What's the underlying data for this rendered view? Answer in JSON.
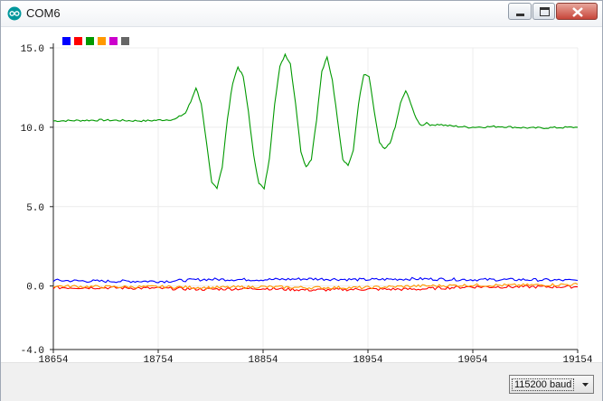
{
  "window": {
    "title": "COM6"
  },
  "baud": {
    "selected": "115200 baud"
  },
  "chart_data": {
    "type": "line",
    "x_ticks": [
      18654,
      18754,
      18854,
      18954,
      19054,
      19154
    ],
    "y_ticks": [
      15.0,
      10.0,
      5.0,
      0.0,
      -4.0
    ],
    "x_tick_labels": [
      "18654",
      "18754",
      "18854",
      "18954",
      "19054",
      "19154"
    ],
    "y_tick_labels": [
      "15.0",
      "10.0",
      "5.0",
      "0.0",
      "-4.0"
    ],
    "xlim": [
      18654,
      19154
    ],
    "ylim": [
      -4.0,
      15.0
    ],
    "grid": true,
    "legend_colors": [
      "#0000ff",
      "#ff0000",
      "#009900",
      "#ff9900",
      "#cc00cc",
      "#666666"
    ],
    "series": [
      {
        "color": "#009900",
        "x": [
          18654,
          18700,
          18740,
          18770,
          18780,
          18785,
          18790,
          18795,
          18800,
          18805,
          18810,
          18815,
          18820,
          18825,
          18830,
          18835,
          18840,
          18845,
          18850,
          18855,
          18860,
          18865,
          18870,
          18875,
          18880,
          18885,
          18890,
          18895,
          18900,
          18905,
          18910,
          18915,
          18920,
          18925,
          18930,
          18935,
          18940,
          18945,
          18950,
          18955,
          18960,
          18965,
          18970,
          18975,
          18980,
          18985,
          18990,
          18995,
          19000,
          19005,
          19010,
          19015,
          19020,
          19030,
          19050,
          19080,
          19110,
          19154
        ],
        "y": [
          10.4,
          10.45,
          10.4,
          10.5,
          10.9,
          11.6,
          12.5,
          11.5,
          9.0,
          6.5,
          6.2,
          7.5,
          10.5,
          12.8,
          13.8,
          13.2,
          11.0,
          8.2,
          6.5,
          6.1,
          8.0,
          11.5,
          13.8,
          14.6,
          14.0,
          11.5,
          8.5,
          7.5,
          8.0,
          10.5,
          13.5,
          14.4,
          13.0,
          10.5,
          8.0,
          7.6,
          8.5,
          11.5,
          13.3,
          13.2,
          11.0,
          9.0,
          8.6,
          9.0,
          10.0,
          11.5,
          12.3,
          11.5,
          10.5,
          10.1,
          10.3,
          10.1,
          10.2,
          10.1,
          10.0,
          10.05,
          9.95,
          10.0
        ]
      },
      {
        "color": "#0000ff",
        "x": [
          18654,
          18700,
          18760,
          18800,
          18850,
          18900,
          18950,
          19000,
          19050,
          19100,
          19154
        ],
        "y": [
          0.35,
          0.3,
          0.3,
          0.42,
          0.4,
          0.45,
          0.4,
          0.45,
          0.4,
          0.4,
          0.35
        ]
      },
      {
        "color": "#ff0000",
        "x": [
          18654,
          18700,
          18760,
          18800,
          18850,
          18900,
          18950,
          19000,
          19050,
          19100,
          19154
        ],
        "y": [
          -0.1,
          -0.1,
          -0.15,
          -0.2,
          -0.15,
          -0.25,
          -0.2,
          -0.2,
          -0.05,
          -0.05,
          -0.05
        ]
      },
      {
        "color": "#ff9900",
        "x": [
          18654,
          18700,
          18760,
          18800,
          18850,
          18900,
          18950,
          19000,
          19050,
          19100,
          19154
        ],
        "y": [
          0.0,
          -0.05,
          -0.05,
          -0.1,
          -0.05,
          -0.1,
          -0.1,
          0.0,
          0.05,
          0.05,
          0.1
        ]
      }
    ]
  }
}
